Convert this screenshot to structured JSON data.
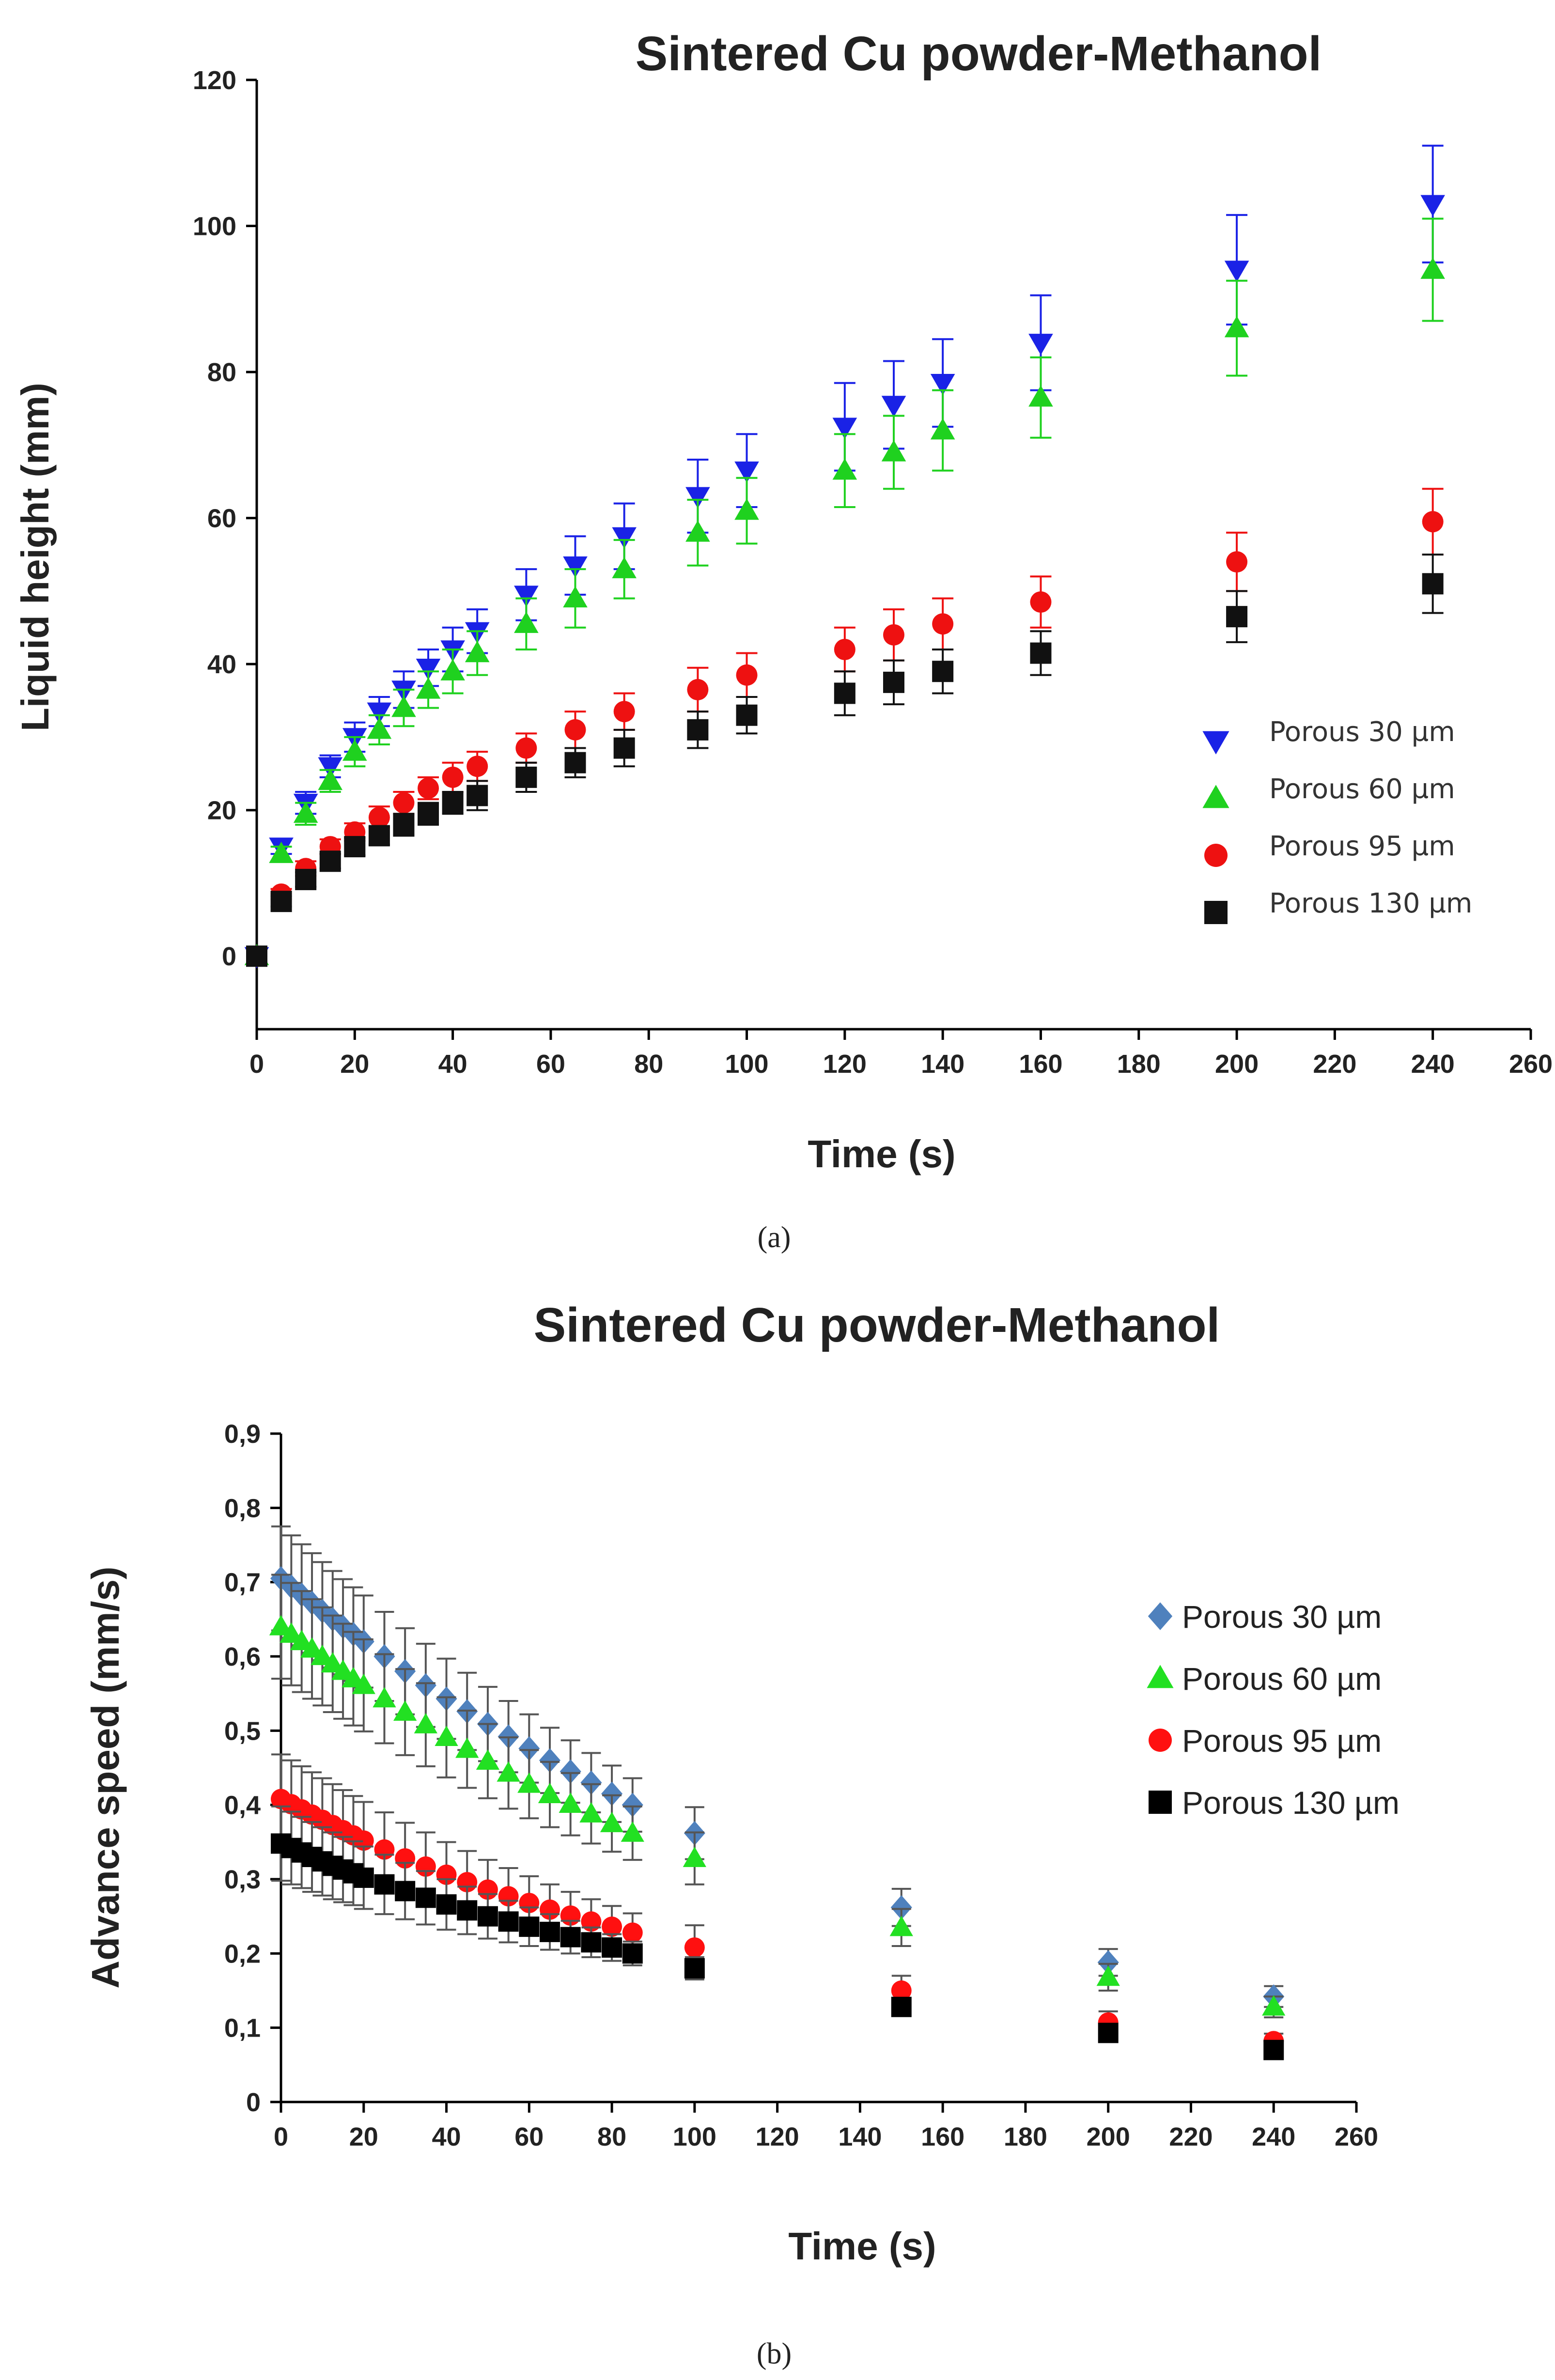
{
  "chart_data": [
    {
      "type": "scatter",
      "title": "Sintered Cu powder-Methanol",
      "xlabel": "Time (s)",
      "ylabel": "Liquid height (mm)",
      "xlim": [
        0,
        260
      ],
      "ylim": [
        -10,
        120
      ],
      "xticks": [
        0,
        20,
        40,
        60,
        80,
        100,
        120,
        140,
        160,
        180,
        200,
        220,
        240,
        260
      ],
      "yticks": [
        0,
        20,
        40,
        60,
        80,
        100,
        120
      ],
      "x": [
        0,
        5,
        10,
        15,
        20,
        25,
        30,
        35,
        40,
        45,
        55,
        65,
        75,
        90,
        100,
        120,
        130,
        140,
        160,
        200,
        240
      ],
      "legend_position": "right-middle",
      "panel_label": "(a)",
      "series": [
        {
          "name": "Porous 30 µm",
          "marker": "triangle-down",
          "color": "#1a22e6",
          "values": [
            0,
            15,
            21,
            26,
            30,
            33.5,
            36.5,
            39.5,
            42,
            44.5,
            49.5,
            53.5,
            57.5,
            63,
            66.5,
            72.5,
            75.5,
            78.5,
            84,
            94,
            103
          ],
          "errors": [
            0,
            1,
            1.5,
            1.5,
            2,
            2,
            2.5,
            2.5,
            3,
            3,
            3.5,
            4,
            4.5,
            5,
            5,
            6,
            6,
            6,
            6.5,
            7.5,
            8
          ]
        },
        {
          "name": "Porous 60 µm",
          "marker": "triangle-up",
          "color": "#1fd11f",
          "values": [
            0,
            14,
            19.5,
            24,
            28,
            31,
            34,
            36.5,
            39,
            41.5,
            45.5,
            49,
            53,
            58,
            61,
            66.5,
            69,
            72,
            76.5,
            86,
            94
          ],
          "errors": [
            0,
            1,
            1.5,
            1.5,
            2,
            2,
            2.5,
            2.5,
            3,
            3,
            3.5,
            4,
            4,
            4.5,
            4.5,
            5,
            5,
            5.5,
            5.5,
            6.5,
            7
          ]
        },
        {
          "name": "Porous 95 µm",
          "marker": "circle",
          "color": "#ee1111",
          "values": [
            0,
            8.5,
            12,
            15,
            17,
            19,
            21,
            23,
            24.5,
            26,
            28.5,
            31,
            33.5,
            36.5,
            38.5,
            42,
            44,
            45.5,
            48.5,
            54,
            59.5
          ],
          "errors": [
            0,
            0.7,
            1,
            1,
            1.2,
            1.5,
            1.5,
            1.5,
            2,
            2,
            2,
            2.5,
            2.5,
            3,
            3,
            3,
            3.5,
            3.5,
            3.5,
            4,
            4.5
          ]
        },
        {
          "name": "Porous 130 µm",
          "marker": "square",
          "color": "#111111",
          "values": [
            0,
            7.5,
            10.5,
            13,
            15,
            16.5,
            18,
            19.5,
            21,
            22,
            24.5,
            26.5,
            28.5,
            31,
            33,
            36,
            37.5,
            39,
            41.5,
            46.5,
            51
          ],
          "errors": [
            0,
            0.7,
            1,
            1,
            1.2,
            1.2,
            1.5,
            1.5,
            1.5,
            2,
            2,
            2,
            2.5,
            2.5,
            2.5,
            3,
            3,
            3,
            3,
            3.5,
            4
          ]
        }
      ]
    },
    {
      "type": "scatter",
      "title": "Sintered Cu powder-Methanol",
      "xlabel": "Time (s)",
      "ylabel": "Advance speed (mm/s)",
      "xlim": [
        0,
        260
      ],
      "ylim": [
        0,
        0.9
      ],
      "xticks": [
        0,
        20,
        40,
        60,
        80,
        100,
        120,
        140,
        160,
        180,
        200,
        220,
        240,
        260
      ],
      "yticks": [
        "0",
        "0,1",
        "0,2",
        "0,3",
        "0,4",
        "0,5",
        "0,6",
        "0,7",
        "0,8",
        "0,9"
      ],
      "x": [
        0,
        2.5,
        5,
        7.5,
        10,
        12.5,
        15,
        17.5,
        20,
        25,
        30,
        35,
        40,
        45,
        50,
        55,
        60,
        65,
        70,
        75,
        80,
        85,
        100,
        150,
        200,
        240
      ],
      "legend_position": "right-top",
      "panel_label": "(b)",
      "series": [
        {
          "name": "Porous 30 µm",
          "marker": "diamond",
          "color": "#4f81bd",
          "values": [
            0.705,
            0.694,
            0.683,
            0.672,
            0.661,
            0.65,
            0.64,
            0.63,
            0.62,
            0.6,
            0.58,
            0.561,
            0.543,
            0.526,
            0.509,
            0.492,
            0.476,
            0.46,
            0.445,
            0.43,
            0.415,
            0.4,
            0.362,
            0.262,
            0.188,
            0.142
          ],
          "errors": [
            0.07,
            0.069,
            0.068,
            0.067,
            0.066,
            0.065,
            0.064,
            0.063,
            0.062,
            0.06,
            0.058,
            0.056,
            0.054,
            0.052,
            0.05,
            0.048,
            0.046,
            0.044,
            0.042,
            0.04,
            0.038,
            0.036,
            0.035,
            0.025,
            0.018,
            0.014
          ]
        },
        {
          "name": "Porous 60 µm",
          "marker": "triangle-up",
          "color": "#22e022",
          "values": [
            0.64,
            0.63,
            0.62,
            0.61,
            0.6,
            0.59,
            0.58,
            0.57,
            0.561,
            0.543,
            0.525,
            0.508,
            0.491,
            0.475,
            0.459,
            0.443,
            0.428,
            0.414,
            0.401,
            0.388,
            0.375,
            0.362,
            0.328,
            0.235,
            0.168,
            0.128
          ],
          "errors": [
            0.07,
            0.069,
            0.068,
            0.067,
            0.066,
            0.065,
            0.064,
            0.063,
            0.062,
            0.06,
            0.058,
            0.056,
            0.054,
            0.052,
            0.05,
            0.048,
            0.046,
            0.044,
            0.042,
            0.04,
            0.038,
            0.036,
            0.035,
            0.025,
            0.018,
            0.014
          ]
        },
        {
          "name": "Porous 95 µm",
          "marker": "circle",
          "color": "#ff1010",
          "values": [
            0.408,
            0.401,
            0.394,
            0.387,
            0.38,
            0.373,
            0.366,
            0.359,
            0.352,
            0.34,
            0.328,
            0.317,
            0.306,
            0.296,
            0.286,
            0.277,
            0.268,
            0.259,
            0.251,
            0.243,
            0.236,
            0.228,
            0.208,
            0.15,
            0.107,
            0.082
          ],
          "errors": [
            0.06,
            0.059,
            0.058,
            0.057,
            0.056,
            0.055,
            0.054,
            0.053,
            0.052,
            0.05,
            0.048,
            0.046,
            0.044,
            0.042,
            0.04,
            0.038,
            0.036,
            0.034,
            0.032,
            0.03,
            0.028,
            0.026,
            0.03,
            0.02,
            0.015,
            0.01
          ]
        },
        {
          "name": "Porous 130 µm",
          "marker": "square",
          "color": "#000000",
          "values": [
            0.348,
            0.342,
            0.336,
            0.33,
            0.324,
            0.318,
            0.313,
            0.308,
            0.302,
            0.293,
            0.284,
            0.275,
            0.266,
            0.258,
            0.25,
            0.243,
            0.236,
            0.229,
            0.222,
            0.215,
            0.208,
            0.2,
            0.18,
            0.128,
            0.093,
            0.07
          ],
          "errors": [
            0.05,
            0.049,
            0.048,
            0.047,
            0.046,
            0.045,
            0.044,
            0.043,
            0.042,
            0.04,
            0.038,
            0.036,
            0.034,
            0.032,
            0.03,
            0.028,
            0.026,
            0.024,
            0.022,
            0.02,
            0.018,
            0.016,
            0.015,
            0.012,
            0.01,
            0.008
          ]
        }
      ]
    }
  ]
}
